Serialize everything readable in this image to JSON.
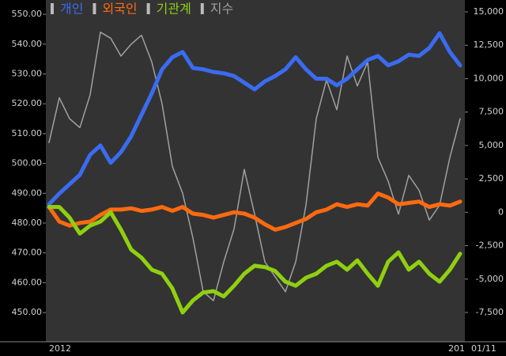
{
  "chart_data": {
    "type": "line",
    "series": [
      {
        "name": "개인",
        "color": "#3a6cf0",
        "axis": "y2",
        "values": [
          600,
          1400,
          2100,
          2800,
          4300,
          5000,
          3700,
          4500,
          5700,
          7300,
          8900,
          10700,
          11600,
          12000,
          10800,
          10700,
          10500,
          10400,
          10200,
          9700,
          9200,
          9800,
          10200,
          10700,
          11600,
          10700,
          10000,
          10000,
          9500,
          10000,
          10700,
          11400,
          11700,
          11000,
          11300,
          11800,
          11700,
          12300,
          13400,
          12000,
          11000
        ]
      },
      {
        "name": "외국인",
        "color": "#ff6a10",
        "axis": "y2",
        "values": [
          400,
          -700,
          -1000,
          -800,
          -700,
          -200,
          200,
          200,
          300,
          100,
          200,
          400,
          100,
          400,
          -100,
          -200,
          -400,
          -200,
          0,
          -100,
          -400,
          -900,
          -1300,
          -1100,
          -800,
          -500,
          0,
          200,
          600,
          400,
          600,
          500,
          1400,
          1100,
          600,
          700,
          800,
          400,
          600,
          500,
          800
        ]
      },
      {
        "name": "기관계",
        "color": "#8fd010",
        "axis": "y2",
        "values": [
          400,
          400,
          -400,
          -1600,
          -1000,
          -700,
          0,
          -1300,
          -2800,
          -3400,
          -4300,
          -4600,
          -5700,
          -7500,
          -6600,
          -6000,
          -5900,
          -6300,
          -5500,
          -4600,
          -4000,
          -4100,
          -4400,
          -5200,
          -5500,
          -4900,
          -4600,
          -4000,
          -3700,
          -4300,
          -3600,
          -4600,
          -5500,
          -3700,
          -3000,
          -4300,
          -3700,
          -4600,
          -5200,
          -4300,
          -3100
        ]
      },
      {
        "name": "지수",
        "color": "#a0a0a0",
        "values": [
          507,
          522,
          515,
          512,
          523,
          544,
          542,
          536,
          540,
          543,
          534,
          520,
          499,
          490,
          475,
          457,
          454,
          467,
          478,
          498,
          483,
          467,
          462,
          457,
          467,
          486,
          515,
          528,
          518,
          536,
          526,
          534,
          502,
          494,
          483,
          496,
          491,
          481,
          486,
          502,
          515
        ]
      }
    ],
    "ylim": [
      440.2,
      554.8
    ],
    "yticks": [
      {
        "value": 450,
        "label": "450.00"
      },
      {
        "value": 460,
        "label": "460.00"
      },
      {
        "value": 470,
        "label": "470.00"
      },
      {
        "value": 480,
        "label": "480.00"
      },
      {
        "value": 490,
        "label": "490.00"
      },
      {
        "value": 500,
        "label": "500.00"
      },
      {
        "value": 510,
        "label": "510.00"
      },
      {
        "value": 520,
        "label": "520.00"
      },
      {
        "value": 530,
        "label": "530.00"
      },
      {
        "value": 540,
        "label": "540.00"
      },
      {
        "value": 550,
        "label": "550.00"
      }
    ],
    "y2lim": [
      -9692,
      15889
    ],
    "y2ticks": [
      {
        "value": -7500,
        "label": "-7,500"
      },
      {
        "value": -5000,
        "label": "-5,000"
      },
      {
        "value": -2500,
        "label": "-2,500"
      },
      0,
      {
        "value": 2500,
        "label": "2,500"
      },
      {
        "value": 5000,
        "label": "5,000"
      },
      {
        "value": 7500,
        "label": "7,500"
      },
      {
        "value": 10000,
        "label": "10,000"
      },
      {
        "value": 12500,
        "label": "12,500"
      },
      {
        "value": 15000,
        "label": "15,000"
      }
    ],
    "x_labels": [
      "2012",
      "201"
    ],
    "date_label": "01/11"
  }
}
